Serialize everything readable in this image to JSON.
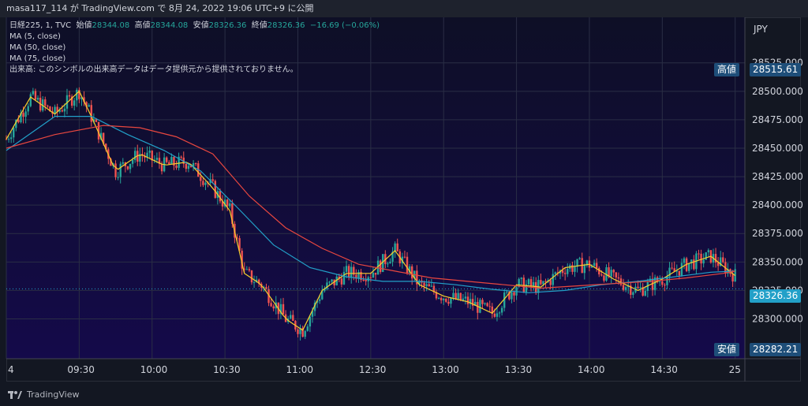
{
  "header": {
    "user": "masa117_114",
    "text": "masa117_114 が TradingView.com で 8月 24, 2022 19:06 UTC+9 に公開"
  },
  "legend": {
    "symbol": "日経225, 1, TVC",
    "open_label": "始値",
    "open": "28344.08",
    "high_label": "高値",
    "high": "28344.08",
    "low_label": "安値",
    "low": "28326.36",
    "close_label": "終値",
    "close": "28326.36",
    "change": "−16.69 (−0.06%)",
    "ma5": "MA (5, close)",
    "ma50": "MA (50, close)",
    "ma75": "MA (75, close)",
    "volume_note": "出来高: このシンボルの出来高データはデータ提供元から提供されておりません。"
  },
  "currency": "JPY",
  "price_tags": {
    "high_label": "高値",
    "high_value": "28515.61",
    "low_label": "安値",
    "low_value": "28282.21",
    "last_value": "28326.36"
  },
  "brand": "TradingView",
  "colors": {
    "background": "#131722",
    "up": "#26a69a",
    "down": "#ef5350",
    "ma5": "#f7d02c",
    "ma50": "#22a0c8",
    "ma75": "#e8473f"
  },
  "chart_data": {
    "type": "candlestick",
    "x_tick_labels": [
      "4",
      "09:30",
      "10:00",
      "10:30",
      "11:00",
      "12:30",
      "13:00",
      "13:30",
      "14:00",
      "14:30",
      "25"
    ],
    "x_ticks": [
      0,
      30,
      60,
      90,
      120,
      150,
      180,
      210,
      240,
      270,
      300
    ],
    "y_ticks": [
      28300,
      28325,
      28350,
      28375,
      28400,
      28425,
      28450,
      28475,
      28500,
      28525
    ],
    "ylim": [
      28265,
      28565
    ],
    "xlim": [
      0,
      304
    ],
    "series": [
      {
        "name": "MA (5, close)",
        "values": [
          [
            0,
            28458
          ],
          [
            10,
            28495
          ],
          [
            20,
            28480
          ],
          [
            30,
            28500
          ],
          [
            35,
            28478
          ],
          [
            45,
            28430
          ],
          [
            55,
            28445
          ],
          [
            65,
            28435
          ],
          [
            75,
            28438
          ],
          [
            85,
            28415
          ],
          [
            92,
            28395
          ],
          [
            98,
            28340
          ],
          [
            105,
            28330
          ],
          [
            115,
            28300
          ],
          [
            122,
            28290
          ],
          [
            130,
            28325
          ],
          [
            140,
            28340
          ],
          [
            150,
            28340
          ],
          [
            160,
            28360
          ],
          [
            170,
            28330
          ],
          [
            180,
            28320
          ],
          [
            190,
            28315
          ],
          [
            200,
            28305
          ],
          [
            210,
            28330
          ],
          [
            220,
            28328
          ],
          [
            230,
            28345
          ],
          [
            240,
            28348
          ],
          [
            250,
            28335
          ],
          [
            260,
            28325
          ],
          [
            270,
            28335
          ],
          [
            280,
            28348
          ],
          [
            290,
            28355
          ],
          [
            300,
            28338
          ]
        ]
      },
      {
        "name": "MA (50, close)",
        "values": [
          [
            0,
            28448
          ],
          [
            20,
            28478
          ],
          [
            35,
            28478
          ],
          [
            50,
            28462
          ],
          [
            65,
            28448
          ],
          [
            80,
            28430
          ],
          [
            95,
            28398
          ],
          [
            110,
            28365
          ],
          [
            125,
            28345
          ],
          [
            140,
            28337
          ],
          [
            155,
            28333
          ],
          [
            170,
            28333
          ],
          [
            185,
            28330
          ],
          [
            200,
            28326
          ],
          [
            215,
            28323
          ],
          [
            230,
            28325
          ],
          [
            245,
            28330
          ],
          [
            260,
            28333
          ],
          [
            275,
            28337
          ],
          [
            290,
            28341
          ],
          [
            300,
            28342
          ]
        ]
      },
      {
        "name": "MA (75, close)",
        "values": [
          [
            0,
            28450
          ],
          [
            20,
            28462
          ],
          [
            40,
            28470
          ],
          [
            55,
            28468
          ],
          [
            70,
            28460
          ],
          [
            85,
            28445
          ],
          [
            100,
            28408
          ],
          [
            115,
            28380
          ],
          [
            130,
            28362
          ],
          [
            145,
            28348
          ],
          [
            160,
            28342
          ],
          [
            175,
            28336
          ],
          [
            190,
            28333
          ],
          [
            205,
            28330
          ],
          [
            220,
            28327
          ],
          [
            235,
            28329
          ],
          [
            250,
            28331
          ],
          [
            265,
            28333
          ],
          [
            280,
            28336
          ],
          [
            295,
            28340
          ],
          [
            300,
            28342
          ]
        ]
      }
    ],
    "candles_generated": true
  }
}
